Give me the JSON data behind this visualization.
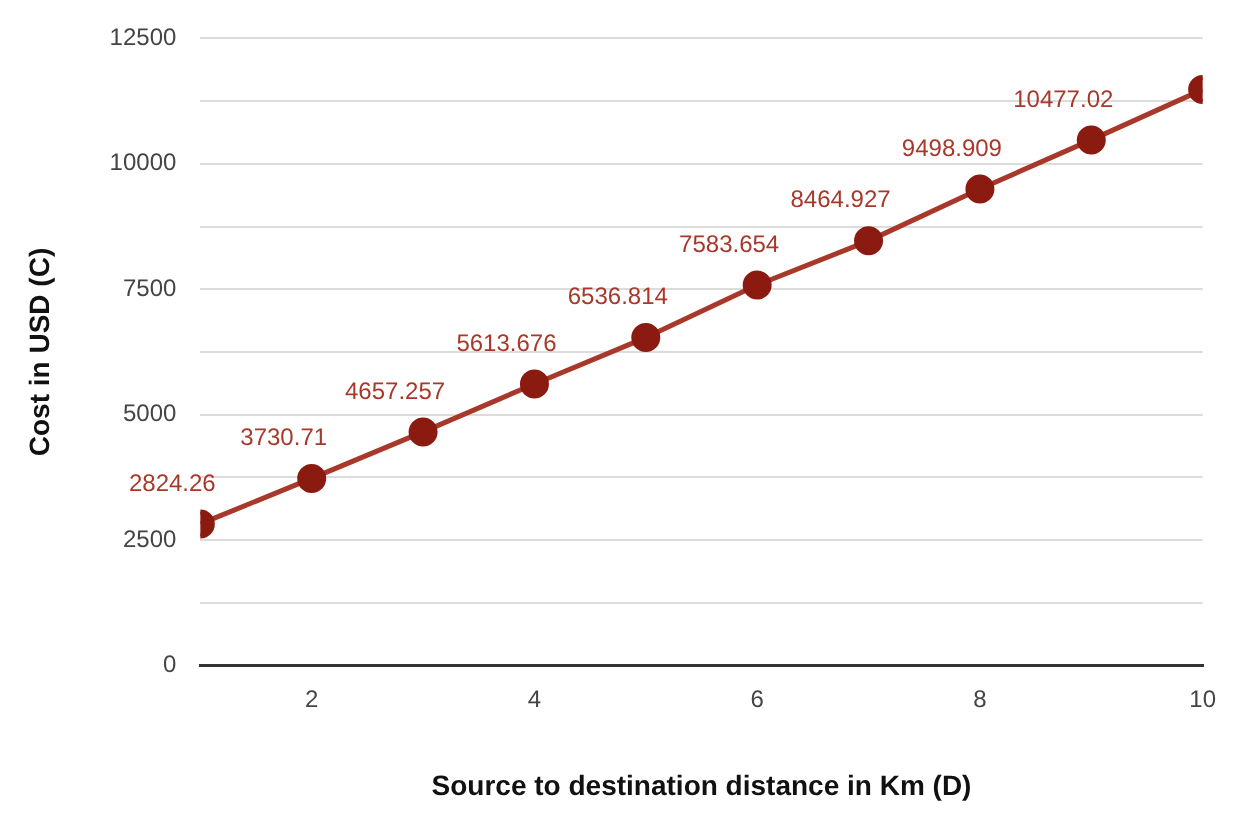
{
  "chart_data": {
    "type": "line",
    "xlabel": "Source to destination distance in Km (D)",
    "ylabel": "Cost in USD (C)",
    "x": [
      1,
      2,
      3,
      4,
      5,
      6,
      7,
      8,
      9,
      10
    ],
    "series": [
      {
        "color": "#a8382a",
        "values": [
          2824.26,
          3730.71,
          4657.257,
          5613.676,
          6536.814,
          7583.654,
          8464.927,
          9498.909,
          10477.02,
          11480
        ],
        "value_labels": [
          "2824.26",
          "3730.71",
          "4657.257",
          "5613.676",
          "6536.814",
          "7583.654",
          "8464.927",
          "9498.909",
          "10477.02",
          null
        ]
      }
    ],
    "xlim": [
      1,
      10
    ],
    "xticks": [
      2,
      4,
      6,
      8,
      10
    ],
    "ylim": [
      0,
      12500
    ],
    "yticks": [
      0,
      {
        "value": 1250,
        "label": null
      },
      2500,
      {
        "value": 3750,
        "label": null
      },
      5000,
      {
        "value": 6250,
        "label": null
      },
      7500,
      {
        "value": 8750,
        "label": null
      },
      10000,
      {
        "value": 11250,
        "label": null
      },
      12500
    ],
    "grid": "y",
    "marker": "circle",
    "line_style": "solid",
    "legend": false
  }
}
